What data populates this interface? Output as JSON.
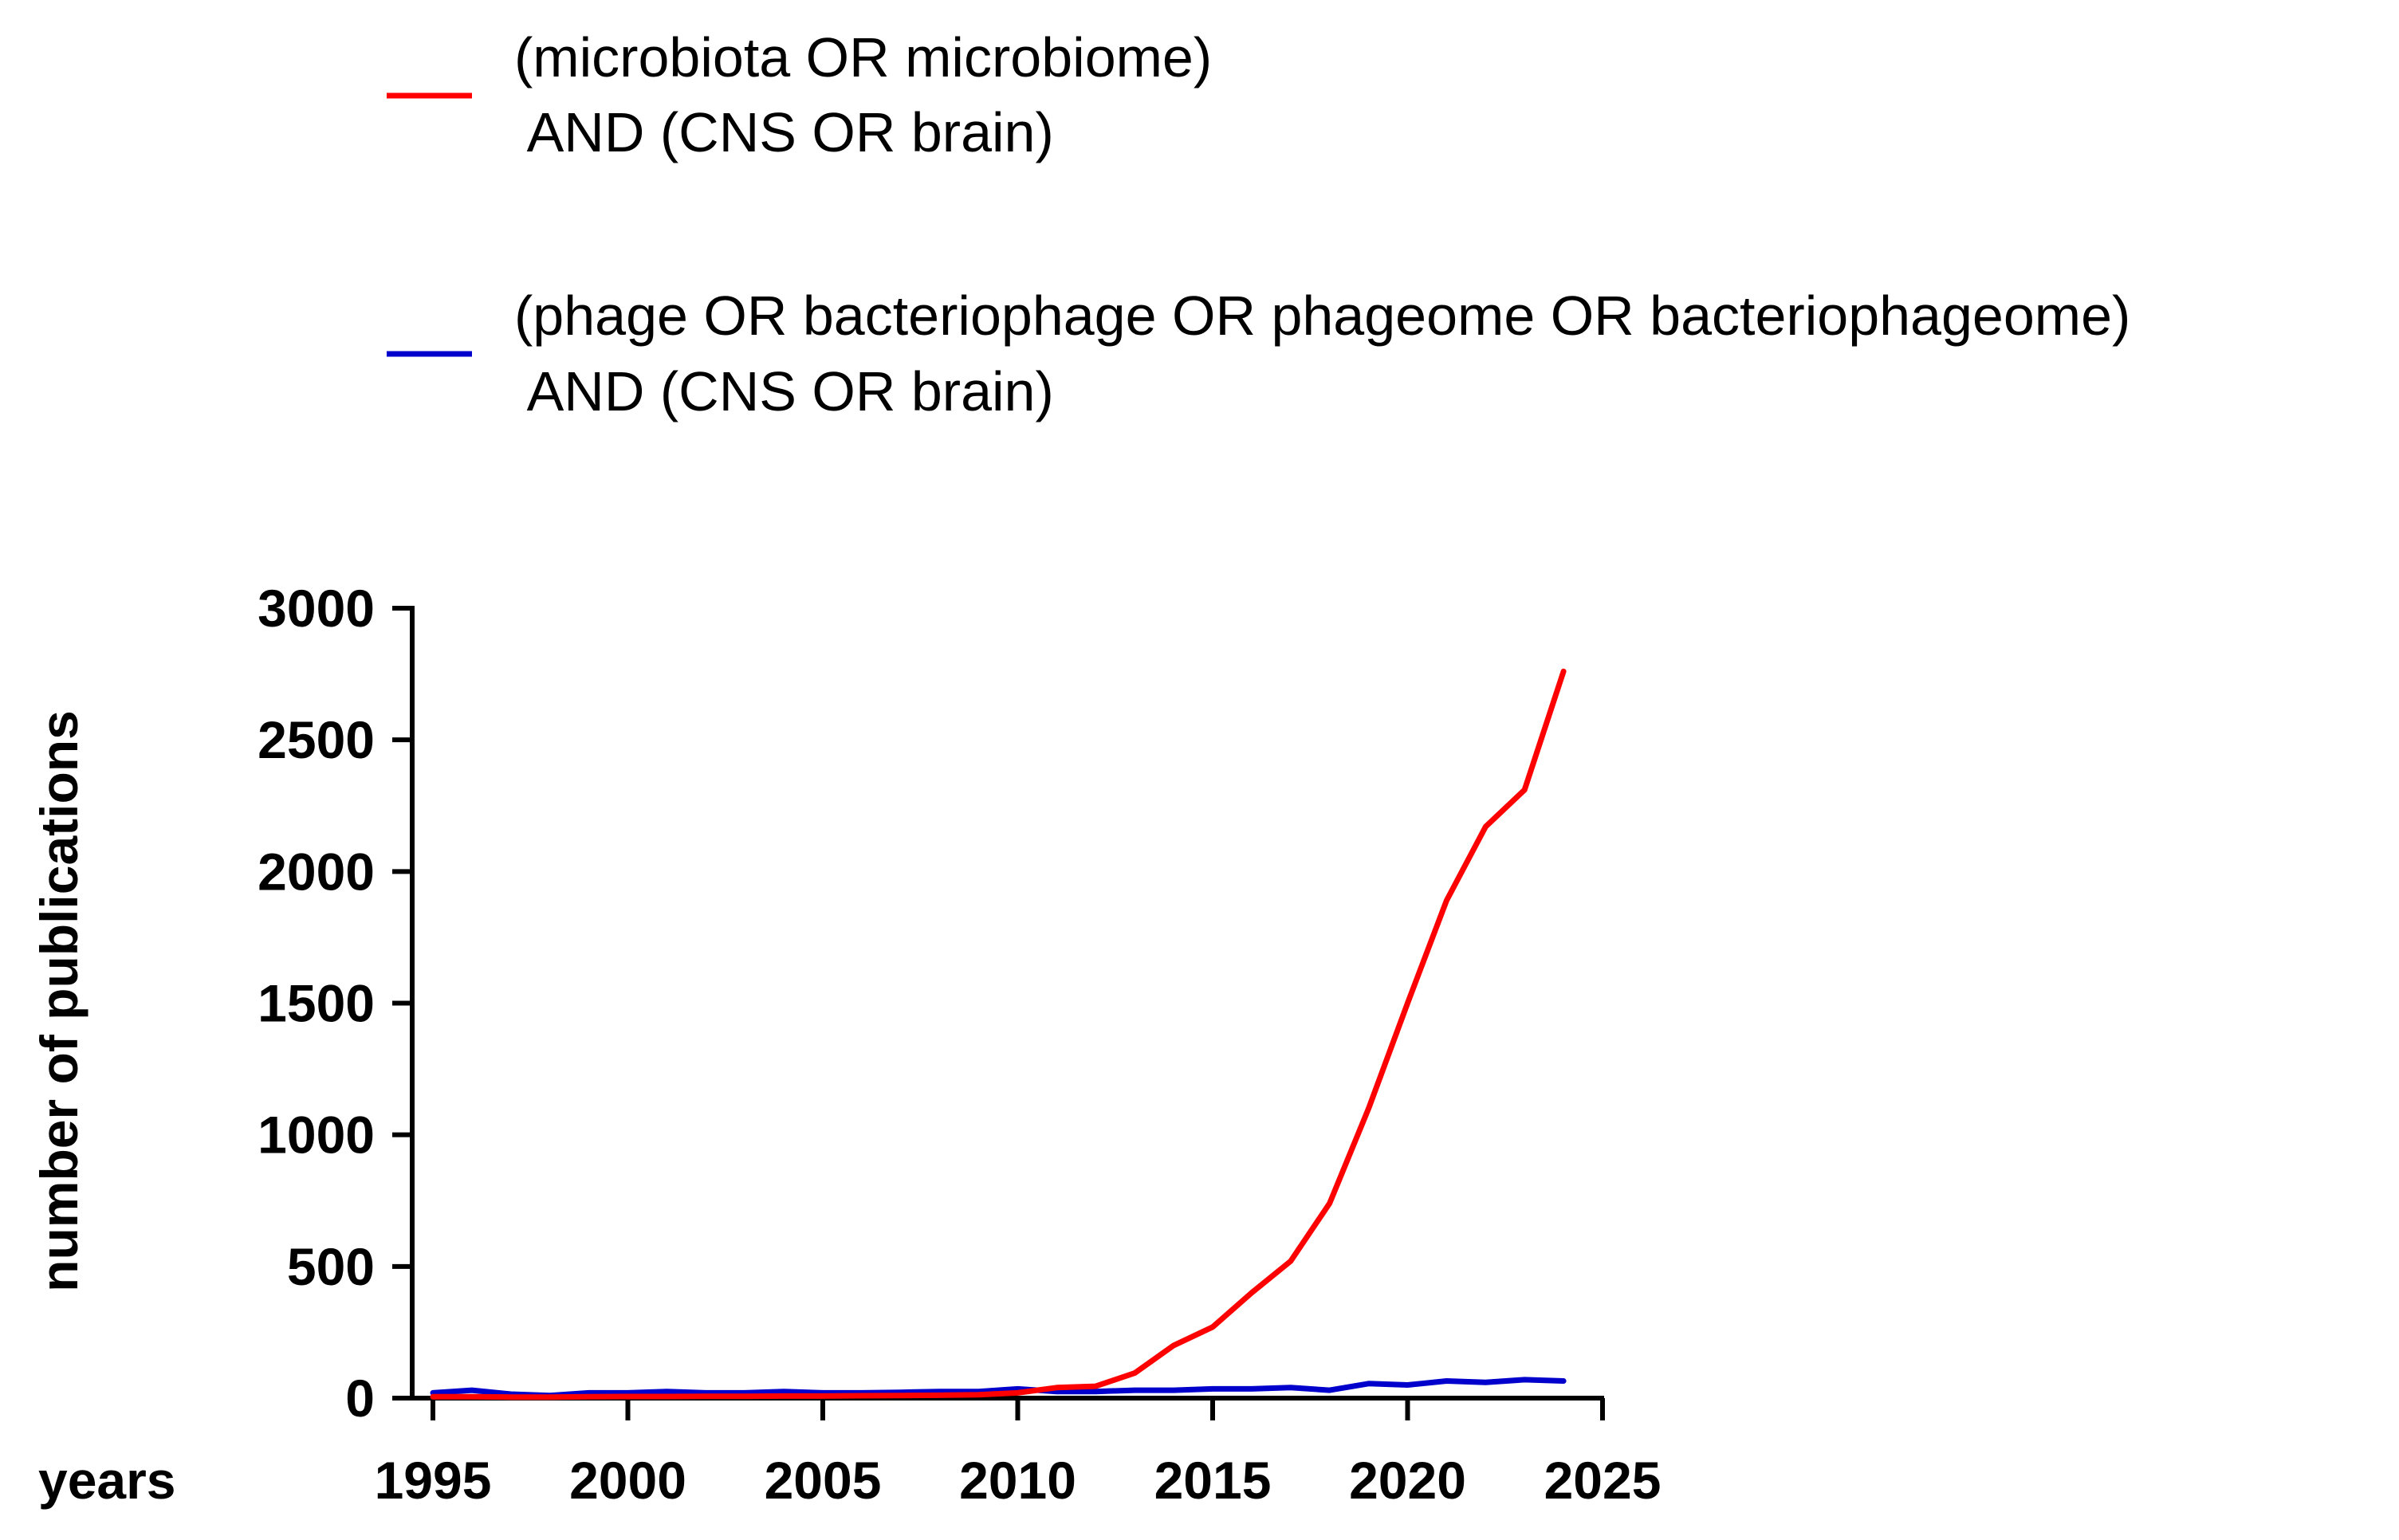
{
  "chart_data": {
    "type": "line",
    "xlabel": "years",
    "ylabel": "number of publications",
    "xlim": [
      1995,
      2025
    ],
    "ylim": [
      0,
      3000
    ],
    "xticks": [
      1995,
      2000,
      2005,
      2010,
      2015,
      2020,
      2025
    ],
    "yticks": [
      0,
      500,
      1000,
      1500,
      2000,
      2500,
      3000
    ],
    "grid": false,
    "legend_position": "top",
    "x": [
      1995,
      1996,
      1997,
      1998,
      1999,
      2000,
      2001,
      2002,
      2003,
      2004,
      2005,
      2006,
      2007,
      2008,
      2009,
      2010,
      2011,
      2012,
      2013,
      2014,
      2015,
      2016,
      2017,
      2018,
      2019,
      2020,
      2021,
      2022,
      2023,
      2024
    ],
    "series": [
      {
        "name_lines": [
          "(microbiota OR microbiome)",
          " AND (CNS OR brain)"
        ],
        "color": "#ff0000",
        "values": [
          5,
          5,
          4,
          4,
          5,
          6,
          6,
          7,
          7,
          8,
          8,
          9,
          10,
          11,
          13,
          20,
          40,
          45,
          95,
          200,
          270,
          400,
          520,
          740,
          1100,
          1500,
          1890,
          2170,
          2310,
          2760
        ]
      },
      {
        "name_lines": [
          "(phage OR bacteriophage OR phageome OR bacteriophageome)",
          " AND (CNS OR brain)"
        ],
        "color": "#0000cc",
        "values": [
          20,
          30,
          15,
          10,
          20,
          20,
          25,
          20,
          20,
          25,
          20,
          20,
          22,
          25,
          25,
          35,
          25,
          25,
          30,
          30,
          35,
          35,
          40,
          30,
          55,
          50,
          65,
          60,
          70,
          65
        ]
      }
    ]
  }
}
